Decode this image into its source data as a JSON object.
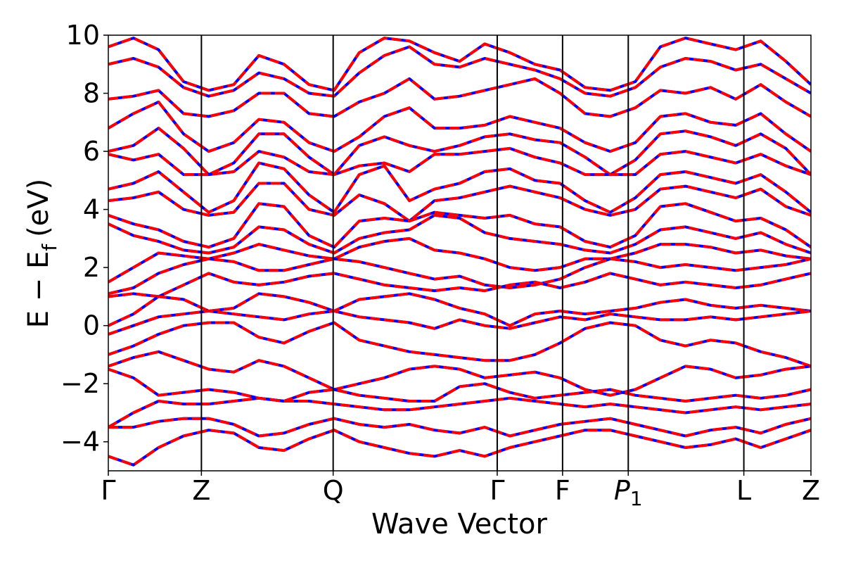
{
  "chart_data": {
    "type": "line",
    "xlabel": "Wave Vector",
    "ylabel_main": "E − E",
    "ylabel_sub": "f",
    "ylabel_unit": "(eV)",
    "ylim": [
      -5,
      10
    ],
    "yticks": [
      -4,
      -2,
      0,
      2,
      4,
      6,
      8,
      10
    ],
    "ytick_labels": [
      "−4",
      "−2",
      "0",
      "2",
      "4",
      "6",
      "8",
      "10"
    ],
    "kpoints": [
      {
        "label": "Γ",
        "sub": "",
        "italic": false,
        "pos": 0.0
      },
      {
        "label": "Z",
        "sub": "",
        "italic": false,
        "pos": 0.1325
      },
      {
        "label": "Q",
        "sub": "",
        "italic": false,
        "pos": 0.32
      },
      {
        "label": "Γ",
        "sub": "",
        "italic": false,
        "pos": 0.5535
      },
      {
        "label": "F",
        "sub": "",
        "italic": false,
        "pos": 0.6465
      },
      {
        "label": "P",
        "sub": "1",
        "italic": true,
        "pos": 0.74
      },
      {
        "label": "L",
        "sub": "",
        "italic": false,
        "pos": 0.9045
      },
      {
        "label": "Z",
        "sub": "",
        "italic": false,
        "pos": 1.0
      }
    ],
    "colors": {
      "series_a": "#0000ff",
      "series_b": "#ff0000"
    },
    "bands": [
      [
        9.6,
        9.9,
        9.5,
        8.4,
        8.1,
        8.3,
        9.3,
        9.0,
        8.3,
        8.1,
        9.4,
        9.9,
        9.8,
        9.4,
        9.1,
        9.7,
        9.4,
        9.0,
        8.8,
        8.2,
        8.1,
        8.4,
        9.6,
        9.9,
        9.7,
        9.5,
        9.8,
        9.1,
        8.3
      ],
      [
        9.0,
        9.2,
        8.9,
        8.2,
        7.9,
        8.1,
        8.7,
        8.5,
        8.0,
        7.9,
        8.7,
        9.3,
        9.6,
        9.0,
        8.9,
        9.2,
        9.0,
        8.8,
        8.5,
        8.0,
        7.9,
        8.2,
        8.9,
        9.2,
        9.1,
        8.8,
        9.0,
        8.5,
        8.0
      ],
      [
        7.8,
        7.9,
        8.1,
        7.3,
        7.2,
        7.4,
        8.0,
        8.0,
        7.3,
        7.2,
        7.7,
        8.0,
        8.5,
        7.8,
        7.9,
        8.1,
        8.3,
        8.5,
        8.0,
        7.3,
        7.2,
        7.5,
        8.1,
        8.0,
        8.2,
        7.8,
        8.3,
        7.7,
        7.2
      ],
      [
        6.8,
        7.3,
        7.7,
        6.6,
        6.0,
        6.3,
        7.1,
        7.0,
        6.3,
        6.0,
        6.5,
        7.2,
        7.5,
        6.8,
        6.8,
        6.9,
        7.2,
        7.0,
        6.8,
        6.3,
        6.0,
        6.3,
        7.2,
        7.3,
        7.0,
        6.9,
        7.3,
        6.6,
        6.0
      ],
      [
        6.0,
        6.2,
        6.8,
        6.1,
        5.2,
        5.6,
        6.6,
        6.6,
        5.8,
        5.2,
        6.2,
        6.5,
        6.2,
        6.0,
        6.2,
        6.5,
        6.6,
        6.4,
        6.3,
        5.8,
        5.2,
        5.7,
        6.6,
        6.7,
        6.5,
        6.2,
        6.6,
        6.1,
        5.2
      ],
      [
        5.9,
        5.7,
        5.9,
        5.2,
        5.2,
        5.3,
        6.0,
        5.8,
        5.3,
        5.2,
        5.5,
        5.6,
        5.3,
        5.9,
        5.9,
        6.0,
        6.1,
        5.8,
        5.6,
        5.2,
        5.2,
        5.2,
        5.9,
        6.0,
        5.8,
        5.6,
        5.9,
        5.5,
        5.2
      ],
      [
        4.7,
        4.9,
        5.3,
        4.6,
        3.9,
        4.3,
        5.6,
        5.4,
        4.5,
        3.9,
        5.2,
        5.5,
        4.3,
        4.7,
        4.9,
        5.3,
        5.4,
        5.0,
        4.9,
        4.3,
        3.9,
        4.4,
        5.2,
        5.3,
        5.1,
        4.9,
        5.2,
        4.6,
        3.9
      ],
      [
        4.3,
        4.4,
        4.6,
        4.0,
        3.8,
        3.9,
        4.9,
        4.9,
        4.0,
        3.8,
        4.5,
        4.2,
        3.6,
        4.3,
        4.4,
        4.6,
        4.8,
        4.6,
        4.4,
        4.0,
        3.8,
        4.0,
        4.7,
        4.8,
        4.6,
        4.4,
        4.7,
        4.1,
        3.8
      ],
      [
        3.8,
        3.5,
        3.3,
        2.9,
        2.7,
        3.0,
        4.2,
        4.1,
        3.1,
        2.7,
        3.6,
        3.7,
        3.6,
        3.9,
        3.8,
        3.7,
        3.8,
        3.5,
        3.4,
        2.9,
        2.7,
        3.1,
        4.1,
        4.2,
        3.9,
        3.6,
        3.7,
        3.3,
        2.7
      ],
      [
        3.5,
        3.1,
        2.9,
        2.6,
        2.5,
        2.7,
        3.4,
        3.3,
        2.8,
        2.5,
        3.0,
        3.2,
        3.3,
        3.8,
        3.7,
        3.2,
        3.0,
        2.9,
        2.8,
        2.6,
        2.5,
        2.8,
        3.3,
        3.4,
        3.2,
        3.0,
        3.2,
        2.8,
        2.5
      ],
      [
        1.5,
        2.0,
        2.5,
        2.4,
        2.3,
        2.5,
        2.8,
        2.6,
        2.4,
        2.3,
        2.7,
        2.9,
        3.0,
        2.6,
        2.5,
        2.3,
        2.0,
        1.9,
        2.0,
        2.3,
        2.3,
        2.5,
        2.8,
        2.8,
        2.7,
        2.5,
        2.6,
        2.4,
        2.3
      ],
      [
        1.1,
        1.3,
        1.8,
        2.1,
        2.3,
        2.2,
        1.9,
        1.9,
        2.1,
        2.3,
        2.2,
        2.0,
        1.8,
        1.6,
        1.7,
        1.4,
        1.3,
        1.4,
        1.6,
        2.0,
        2.3,
        2.2,
        2.0,
        2.1,
        2.0,
        1.9,
        2.0,
        2.1,
        2.3
      ],
      [
        1.0,
        1.1,
        1.0,
        1.4,
        1.8,
        1.5,
        1.4,
        1.5,
        1.7,
        1.8,
        1.6,
        1.4,
        1.3,
        1.2,
        1.3,
        1.2,
        1.4,
        1.5,
        1.3,
        1.5,
        1.8,
        1.6,
        1.4,
        1.5,
        1.4,
        1.3,
        1.4,
        1.6,
        1.8
      ],
      [
        0.0,
        0.4,
        1.0,
        0.9,
        0.5,
        0.6,
        1.1,
        1.0,
        0.8,
        0.5,
        0.9,
        1.0,
        1.1,
        0.9,
        0.6,
        0.4,
        0.0,
        0.4,
        0.5,
        0.4,
        0.5,
        0.6,
        0.8,
        0.9,
        0.7,
        0.6,
        0.7,
        0.6,
        0.5
      ],
      [
        -0.3,
        0.0,
        0.3,
        0.4,
        0.5,
        0.4,
        0.3,
        0.2,
        0.4,
        0.5,
        0.3,
        0.2,
        0.1,
        -0.1,
        0.2,
        0.0,
        -0.1,
        0.1,
        0.3,
        0.2,
        0.4,
        0.3,
        0.2,
        0.2,
        0.3,
        0.2,
        0.3,
        0.4,
        0.5
      ],
      [
        -1.0,
        -0.7,
        -0.3,
        0.0,
        0.1,
        0.1,
        -0.4,
        -0.6,
        -0.2,
        0.1,
        -0.5,
        -0.7,
        -0.9,
        -1.0,
        -1.1,
        -1.2,
        -1.2,
        -1.0,
        -0.6,
        -0.1,
        0.1,
        0.0,
        -0.5,
        -0.7,
        -0.5,
        -0.6,
        -0.9,
        -1.1,
        -1.4
      ],
      [
        -1.4,
        -1.1,
        -0.9,
        -1.2,
        -1.5,
        -1.6,
        -1.2,
        -1.4,
        -1.8,
        -2.2,
        -2.0,
        -1.8,
        -1.5,
        -1.4,
        -1.5,
        -1.8,
        -1.7,
        -1.6,
        -1.8,
        -2.2,
        -2.4,
        -2.2,
        -1.8,
        -1.4,
        -1.5,
        -1.8,
        -1.7,
        -1.5,
        -1.4
      ],
      [
        -1.5,
        -1.8,
        -2.4,
        -2.3,
        -2.2,
        -2.3,
        -2.5,
        -2.6,
        -2.3,
        -2.2,
        -2.4,
        -2.5,
        -2.6,
        -2.6,
        -2.1,
        -2.0,
        -2.3,
        -2.5,
        -2.4,
        -2.3,
        -2.2,
        -2.4,
        -2.5,
        -2.6,
        -2.5,
        -2.4,
        -2.5,
        -2.4,
        -2.2
      ],
      [
        -3.5,
        -3.0,
        -2.6,
        -2.7,
        -2.7,
        -2.6,
        -2.5,
        -2.6,
        -2.6,
        -2.7,
        -2.8,
        -2.9,
        -2.9,
        -2.8,
        -2.7,
        -2.6,
        -2.5,
        -2.6,
        -2.7,
        -2.8,
        -2.7,
        -2.8,
        -2.9,
        -3.0,
        -2.9,
        -2.8,
        -2.9,
        -2.8,
        -2.7
      ],
      [
        -3.5,
        -3.5,
        -3.3,
        -3.2,
        -3.2,
        -3.4,
        -3.8,
        -3.7,
        -3.4,
        -3.2,
        -3.4,
        -3.5,
        -3.4,
        -3.6,
        -3.7,
        -3.5,
        -3.8,
        -3.6,
        -3.4,
        -3.3,
        -3.2,
        -3.4,
        -3.6,
        -3.8,
        -3.6,
        -3.5,
        -3.7,
        -3.4,
        -3.2
      ],
      [
        -4.5,
        -4.8,
        -4.2,
        -3.8,
        -3.6,
        -3.7,
        -4.2,
        -4.3,
        -3.9,
        -3.6,
        -4.0,
        -4.2,
        -4.4,
        -4.5,
        -4.3,
        -4.5,
        -4.2,
        -4.0,
        -3.8,
        -3.6,
        -3.6,
        -3.8,
        -4.0,
        -4.2,
        -4.1,
        -3.9,
        -4.2,
        -3.9,
        -3.6
      ]
    ]
  }
}
